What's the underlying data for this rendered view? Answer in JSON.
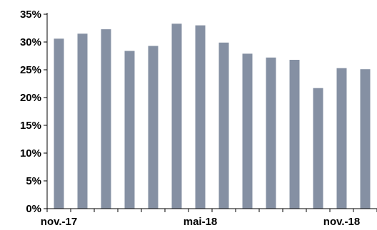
{
  "chart_data": {
    "type": "bar",
    "categories": [
      "nov.-17",
      "",
      "",
      "",
      "",
      "",
      "mai-18",
      "",
      "",
      "",
      "",
      "",
      "nov.-18",
      ""
    ],
    "x_tick_labels": [
      {
        "index": 0,
        "label": "nov.-17"
      },
      {
        "index": 6,
        "label": "mai-18"
      },
      {
        "index": 12,
        "label": "nov.-18"
      }
    ],
    "values": [
      30.6,
      31.5,
      32.3,
      28.4,
      29.3,
      33.3,
      33.0,
      29.9,
      27.9,
      27.2,
      26.8,
      21.7,
      25.3,
      25.1
    ],
    "y_ticks": [
      "0%",
      "5%",
      "10%",
      "15%",
      "20%",
      "25%",
      "30%",
      "35%"
    ],
    "ylim": [
      0,
      35
    ],
    "grid": false,
    "legend": "none",
    "title": "",
    "xlabel": "",
    "ylabel": "",
    "colors": {
      "bar": "#8590a3",
      "axis": "#000000"
    }
  }
}
